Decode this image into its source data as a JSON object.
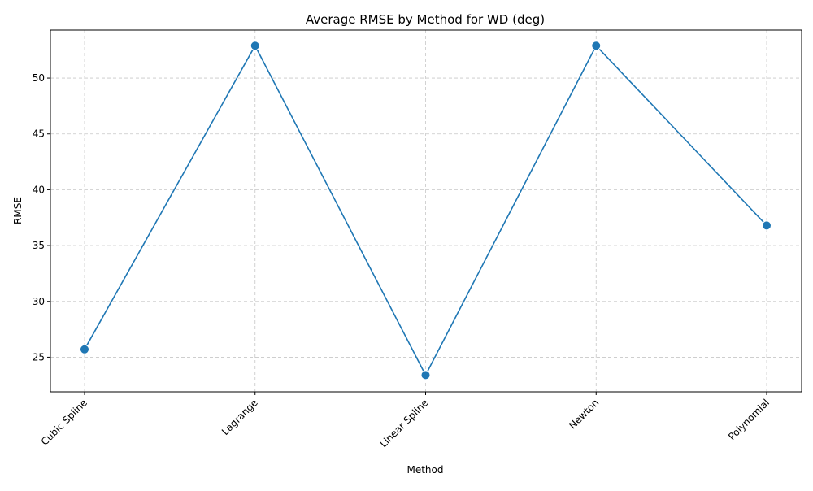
{
  "chart_data": {
    "type": "line",
    "title": "Average RMSE by Method for WD (deg)",
    "xlabel": "Method",
    "ylabel": "RMSE",
    "categories": [
      "Cubic Spline",
      "Lagrange",
      "Linear Spline",
      "Newton",
      "Polynomial"
    ],
    "series": [
      {
        "values": [
          25.7,
          52.9,
          23.4,
          52.9,
          36.8
        ],
        "color": "#1f77b4"
      }
    ],
    "ylim": [
      21.9,
      54.3
    ],
    "yticks": [
      25,
      30,
      35,
      40,
      45,
      50
    ],
    "grid": true,
    "marker": "circle",
    "xtick_rotation": "45"
  }
}
